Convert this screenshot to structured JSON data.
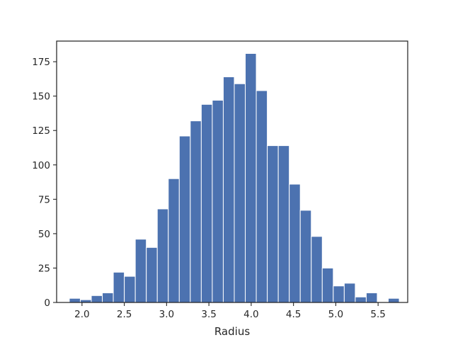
{
  "chart_data": {
    "type": "bar",
    "subtype": "histogram",
    "title": "",
    "xlabel": "Radius",
    "ylabel": "",
    "xlim": [
      1.7,
      5.85
    ],
    "ylim": [
      0,
      190
    ],
    "grid": false,
    "bar_color": "#4c72b0",
    "bin_edges": [
      1.85,
      1.98,
      2.11,
      2.24,
      2.37,
      2.5,
      2.63,
      2.76,
      2.89,
      3.02,
      3.15,
      3.28,
      3.41,
      3.54,
      3.67,
      3.8,
      3.93,
      4.06,
      4.19,
      4.32,
      4.45,
      4.58,
      4.71,
      4.84,
      4.97,
      5.1,
      5.23,
      5.36,
      5.49,
      5.62,
      5.75
    ],
    "counts": [
      3,
      2,
      5,
      7,
      22,
      19,
      46,
      40,
      68,
      90,
      121,
      132,
      144,
      147,
      164,
      159,
      181,
      154,
      114,
      114,
      86,
      67,
      48,
      25,
      12,
      14,
      4,
      7,
      0,
      3
    ],
    "x_ticks": [
      "2.0",
      "2.5",
      "3.0",
      "3.5",
      "4.0",
      "4.5",
      "5.0",
      "5.5"
    ],
    "x_tick_values": [
      2.0,
      2.5,
      3.0,
      3.5,
      4.0,
      4.5,
      5.0,
      5.5
    ],
    "y_ticks": [
      "0",
      "25",
      "50",
      "75",
      "100",
      "125",
      "150",
      "175"
    ],
    "y_tick_values": [
      0,
      25,
      50,
      75,
      100,
      125,
      150,
      175
    ]
  }
}
